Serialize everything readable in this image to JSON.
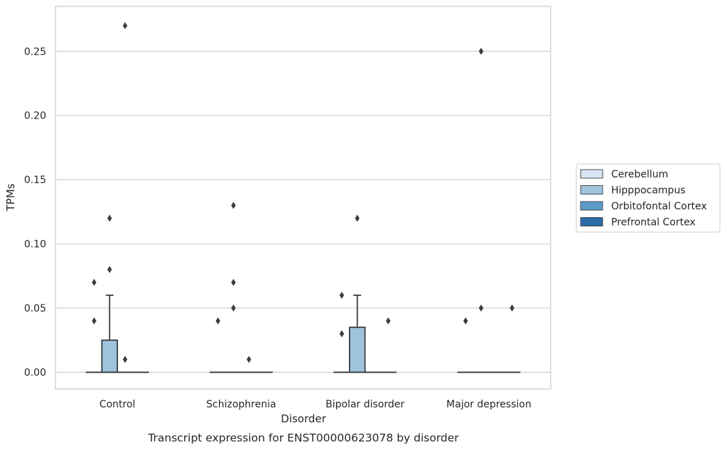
{
  "caption": "Transcript expression for ENST00000623078 by disorder",
  "chart_data": {
    "type": "box",
    "xlabel": "Disorder",
    "ylabel": "TPMs",
    "ylim": [
      -0.013,
      0.285
    ],
    "yticks": [
      0.0,
      0.05,
      0.1,
      0.15,
      0.2,
      0.25
    ],
    "ytick_labels": [
      "0.00",
      "0.05",
      "0.10",
      "0.15",
      "0.20",
      "0.25"
    ],
    "grid": "horizontal",
    "legend_placement": "right",
    "categories": [
      "Control",
      "Schizophrenia",
      "Bipolar disorder",
      "Major depression"
    ],
    "series": [
      {
        "name": "Cerebellum",
        "color": "#d6e5f1",
        "boxes": [
          {
            "min": 0,
            "q1": 0,
            "median": 0,
            "q3": 0,
            "max": 0,
            "outliers": [
              0.04,
              0.07
            ]
          },
          {
            "min": 0,
            "q1": 0,
            "median": 0,
            "q3": 0,
            "max": 0,
            "outliers": [
              0.04
            ]
          },
          {
            "min": 0,
            "q1": 0,
            "median": 0,
            "q3": 0,
            "max": 0,
            "outliers": [
              0.03,
              0.06
            ]
          },
          {
            "min": 0,
            "q1": 0,
            "median": 0,
            "q3": 0,
            "max": 0,
            "outliers": [
              0.04
            ]
          }
        ]
      },
      {
        "name": "Hipppocampus",
        "color": "#9dc4dc",
        "boxes": [
          {
            "min": 0,
            "q1": 0,
            "median": 0,
            "q3": 0.025,
            "max": 0.06,
            "outliers": [
              0.08,
              0.12
            ]
          },
          {
            "min": 0,
            "q1": 0,
            "median": 0,
            "q3": 0,
            "max": 0,
            "outliers": [
              0.05,
              0.07,
              0.13
            ]
          },
          {
            "min": 0,
            "q1": 0,
            "median": 0,
            "q3": 0.035,
            "max": 0.06,
            "outliers": [
              0.12
            ]
          },
          {
            "min": 0,
            "q1": 0,
            "median": 0,
            "q3": 0,
            "max": 0,
            "outliers": [
              0.05,
              0.25
            ]
          }
        ]
      },
      {
        "name": "Orbitofontal Cortex",
        "color": "#5a9bc8",
        "boxes": [
          {
            "min": 0,
            "q1": 0,
            "median": 0,
            "q3": 0,
            "max": 0,
            "outliers": [
              0.01,
              0.27
            ]
          },
          {
            "min": 0,
            "q1": 0,
            "median": 0,
            "q3": 0,
            "max": 0,
            "outliers": [
              0.01
            ]
          },
          {
            "min": 0,
            "q1": 0,
            "median": 0,
            "q3": 0,
            "max": 0,
            "outliers": []
          },
          {
            "min": 0,
            "q1": 0,
            "median": 0,
            "q3": 0,
            "max": 0,
            "outliers": []
          }
        ]
      },
      {
        "name": "Prefrontal Cortex",
        "color": "#2c6da8",
        "boxes": [
          {
            "min": 0,
            "q1": 0,
            "median": 0,
            "q3": 0,
            "max": 0,
            "outliers": []
          },
          {
            "min": 0,
            "q1": 0,
            "median": 0,
            "q3": 0,
            "max": 0,
            "outliers": []
          },
          {
            "min": 0,
            "q1": 0,
            "median": 0,
            "q3": 0,
            "max": 0,
            "outliers": [
              0.04
            ]
          },
          {
            "min": 0,
            "q1": 0,
            "median": 0,
            "q3": 0,
            "max": 0,
            "outliers": [
              0.05
            ]
          }
        ]
      }
    ]
  }
}
